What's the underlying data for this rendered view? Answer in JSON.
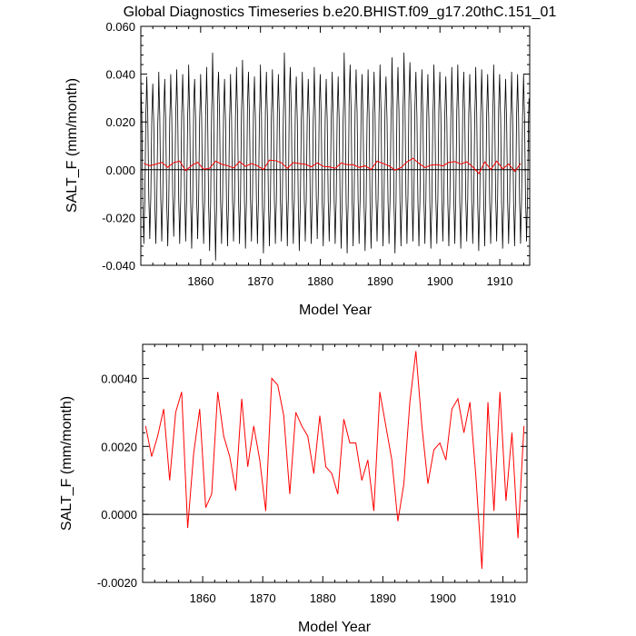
{
  "title": "Global Diagnostics Timeseries b.e20.BHIST.f09_g17.20thC.151_01",
  "chart_data": [
    {
      "type": "line",
      "xlabel": "Model Year",
      "ylabel": "SALT_F (mm/month)",
      "xlim": [
        1850,
        1915
      ],
      "ylim": [
        -0.04,
        0.06
      ],
      "xticks": [
        1860,
        1870,
        1880,
        1890,
        1900,
        1910
      ],
      "yticks": [
        -0.04,
        -0.02,
        0.0,
        0.02,
        0.04,
        0.06
      ],
      "ytick_labels": [
        "-0.040",
        "-0.020",
        "0.000",
        "0.020",
        "0.040",
        "0.060"
      ],
      "grid": false,
      "zero_line": true,
      "series": [
        {
          "color": "#000000",
          "sampling": "monthly",
          "x_start": 1850.0,
          "x_step": 0.0833,
          "seasonal_max": [
            0.04,
            0.039,
            0.036,
            0.041,
            0.038,
            0.04,
            0.042,
            0.04,
            0.044,
            0.038,
            0.04,
            0.043,
            0.049,
            0.041,
            0.038,
            0.04,
            0.043,
            0.046,
            0.041,
            0.039,
            0.044,
            0.041,
            0.042,
            0.04,
            0.049,
            0.043,
            0.039,
            0.041,
            0.038,
            0.043,
            0.04,
            0.038,
            0.041,
            0.039,
            0.049,
            0.044,
            0.042,
            0.04,
            0.042,
            0.041,
            0.044,
            0.039,
            0.047,
            0.043,
            0.049,
            0.045,
            0.041,
            0.042,
            0.04,
            0.044,
            0.041,
            0.039,
            0.043,
            0.044,
            0.041,
            0.04,
            0.043,
            0.042,
            0.04,
            0.044,
            0.04,
            0.038,
            0.041,
            0.04,
            0.04
          ],
          "seasonal_min": [
            -0.031,
            -0.029,
            -0.031,
            -0.03,
            -0.032,
            -0.028,
            -0.031,
            -0.03,
            -0.033,
            -0.029,
            -0.031,
            -0.034,
            -0.038,
            -0.031,
            -0.032,
            -0.03,
            -0.031,
            -0.033,
            -0.03,
            -0.031,
            -0.035,
            -0.032,
            -0.031,
            -0.03,
            -0.032,
            -0.031,
            -0.034,
            -0.03,
            -0.031,
            -0.029,
            -0.032,
            -0.03,
            -0.031,
            -0.033,
            -0.035,
            -0.032,
            -0.031,
            -0.034,
            -0.033,
            -0.03,
            -0.032,
            -0.031,
            -0.035,
            -0.032,
            -0.031,
            -0.03,
            -0.032,
            -0.031,
            -0.033,
            -0.031,
            -0.03,
            -0.032,
            -0.031,
            -0.033,
            -0.03,
            -0.031,
            -0.034,
            -0.032,
            -0.031,
            -0.03,
            -0.033,
            -0.031,
            -0.032,
            -0.031,
            -0.03
          ]
        },
        {
          "color": "#ff0000",
          "sampling": "annual",
          "x": [
            1850.5,
            1851.5,
            1852.5,
            1853.5,
            1854.5,
            1855.5,
            1856.5,
            1857.5,
            1858.5,
            1859.5,
            1860.5,
            1861.5,
            1862.5,
            1863.5,
            1864.5,
            1865.5,
            1866.5,
            1867.5,
            1868.5,
            1869.5,
            1870.5,
            1871.5,
            1872.5,
            1873.5,
            1874.5,
            1875.5,
            1876.5,
            1877.5,
            1878.5,
            1879.5,
            1880.5,
            1881.5,
            1882.5,
            1883.5,
            1884.5,
            1885.5,
            1886.5,
            1887.5,
            1888.5,
            1889.5,
            1890.5,
            1891.5,
            1892.5,
            1893.5,
            1894.5,
            1895.5,
            1896.5,
            1897.5,
            1898.5,
            1899.5,
            1900.5,
            1901.5,
            1902.5,
            1903.5,
            1904.5,
            1905.5,
            1906.5,
            1907.5,
            1908.5,
            1909.5,
            1910.5,
            1911.5,
            1912.5,
            1913.5
          ],
          "y": [
            0.0026,
            0.0017,
            0.0023,
            0.0031,
            0.001,
            0.003,
            0.0036,
            -0.0004,
            0.0018,
            0.0031,
            0.0002,
            0.0006,
            0.0036,
            0.0023,
            0.0017,
            0.0007,
            0.0034,
            0.0014,
            0.0026,
            0.0016,
            0.0001,
            0.004,
            0.0038,
            0.0029,
            0.0006,
            0.003,
            0.0026,
            0.0023,
            0.0012,
            0.0029,
            0.0014,
            0.0012,
            0.0006,
            0.0028,
            0.0021,
            0.0021,
            0.001,
            0.0016,
            0.0001,
            0.0036,
            0.0026,
            0.0016,
            -0.0002,
            0.0009,
            0.0033,
            0.0048,
            0.0026,
            0.0009,
            0.0019,
            0.0021,
            0.0016,
            0.0031,
            0.0034,
            0.0024,
            0.0033,
            0.0011,
            -0.0016,
            0.0033,
            0.0001,
            0.0036,
            0.0004,
            0.0024,
            -0.0007,
            0.0026
          ]
        }
      ]
    },
    {
      "type": "line",
      "xlabel": "Model Year",
      "ylabel": "SALT_F (mm/month)",
      "xlim": [
        1850,
        1914
      ],
      "ylim": [
        -0.002,
        0.005
      ],
      "xticks": [
        1860,
        1870,
        1880,
        1890,
        1900,
        1910
      ],
      "yticks": [
        -0.002,
        0.0,
        0.002,
        0.004
      ],
      "ytick_labels": [
        "-0.0020",
        "0.0000",
        "0.0020",
        "0.0040"
      ],
      "grid": false,
      "zero_line": true,
      "series": [
        {
          "color": "#ff0000",
          "sampling": "annual",
          "x": [
            1850.5,
            1851.5,
            1852.5,
            1853.5,
            1854.5,
            1855.5,
            1856.5,
            1857.5,
            1858.5,
            1859.5,
            1860.5,
            1861.5,
            1862.5,
            1863.5,
            1864.5,
            1865.5,
            1866.5,
            1867.5,
            1868.5,
            1869.5,
            1870.5,
            1871.5,
            1872.5,
            1873.5,
            1874.5,
            1875.5,
            1876.5,
            1877.5,
            1878.5,
            1879.5,
            1880.5,
            1881.5,
            1882.5,
            1883.5,
            1884.5,
            1885.5,
            1886.5,
            1887.5,
            1888.5,
            1889.5,
            1890.5,
            1891.5,
            1892.5,
            1893.5,
            1894.5,
            1895.5,
            1896.5,
            1897.5,
            1898.5,
            1899.5,
            1900.5,
            1901.5,
            1902.5,
            1903.5,
            1904.5,
            1905.5,
            1906.5,
            1907.5,
            1908.5,
            1909.5,
            1910.5,
            1911.5,
            1912.5,
            1913.5
          ],
          "y": [
            0.0026,
            0.0017,
            0.0023,
            0.0031,
            0.001,
            0.003,
            0.0036,
            -0.0004,
            0.0018,
            0.0031,
            0.0002,
            0.0006,
            0.0036,
            0.0023,
            0.0017,
            0.0007,
            0.0034,
            0.0014,
            0.0026,
            0.0016,
            0.0001,
            0.004,
            0.0038,
            0.0029,
            0.0006,
            0.003,
            0.0026,
            0.0023,
            0.0012,
            0.0029,
            0.0014,
            0.0012,
            0.0006,
            0.0028,
            0.0021,
            0.0021,
            0.001,
            0.0016,
            0.0001,
            0.0036,
            0.0026,
            0.0016,
            -0.0002,
            0.0009,
            0.0033,
            0.0048,
            0.0026,
            0.0009,
            0.0019,
            0.0021,
            0.0016,
            0.0031,
            0.0034,
            0.0024,
            0.0033,
            0.0011,
            -0.0016,
            0.0033,
            0.0001,
            0.0036,
            0.0004,
            0.0024,
            -0.0007,
            0.0026
          ]
        }
      ]
    }
  ]
}
